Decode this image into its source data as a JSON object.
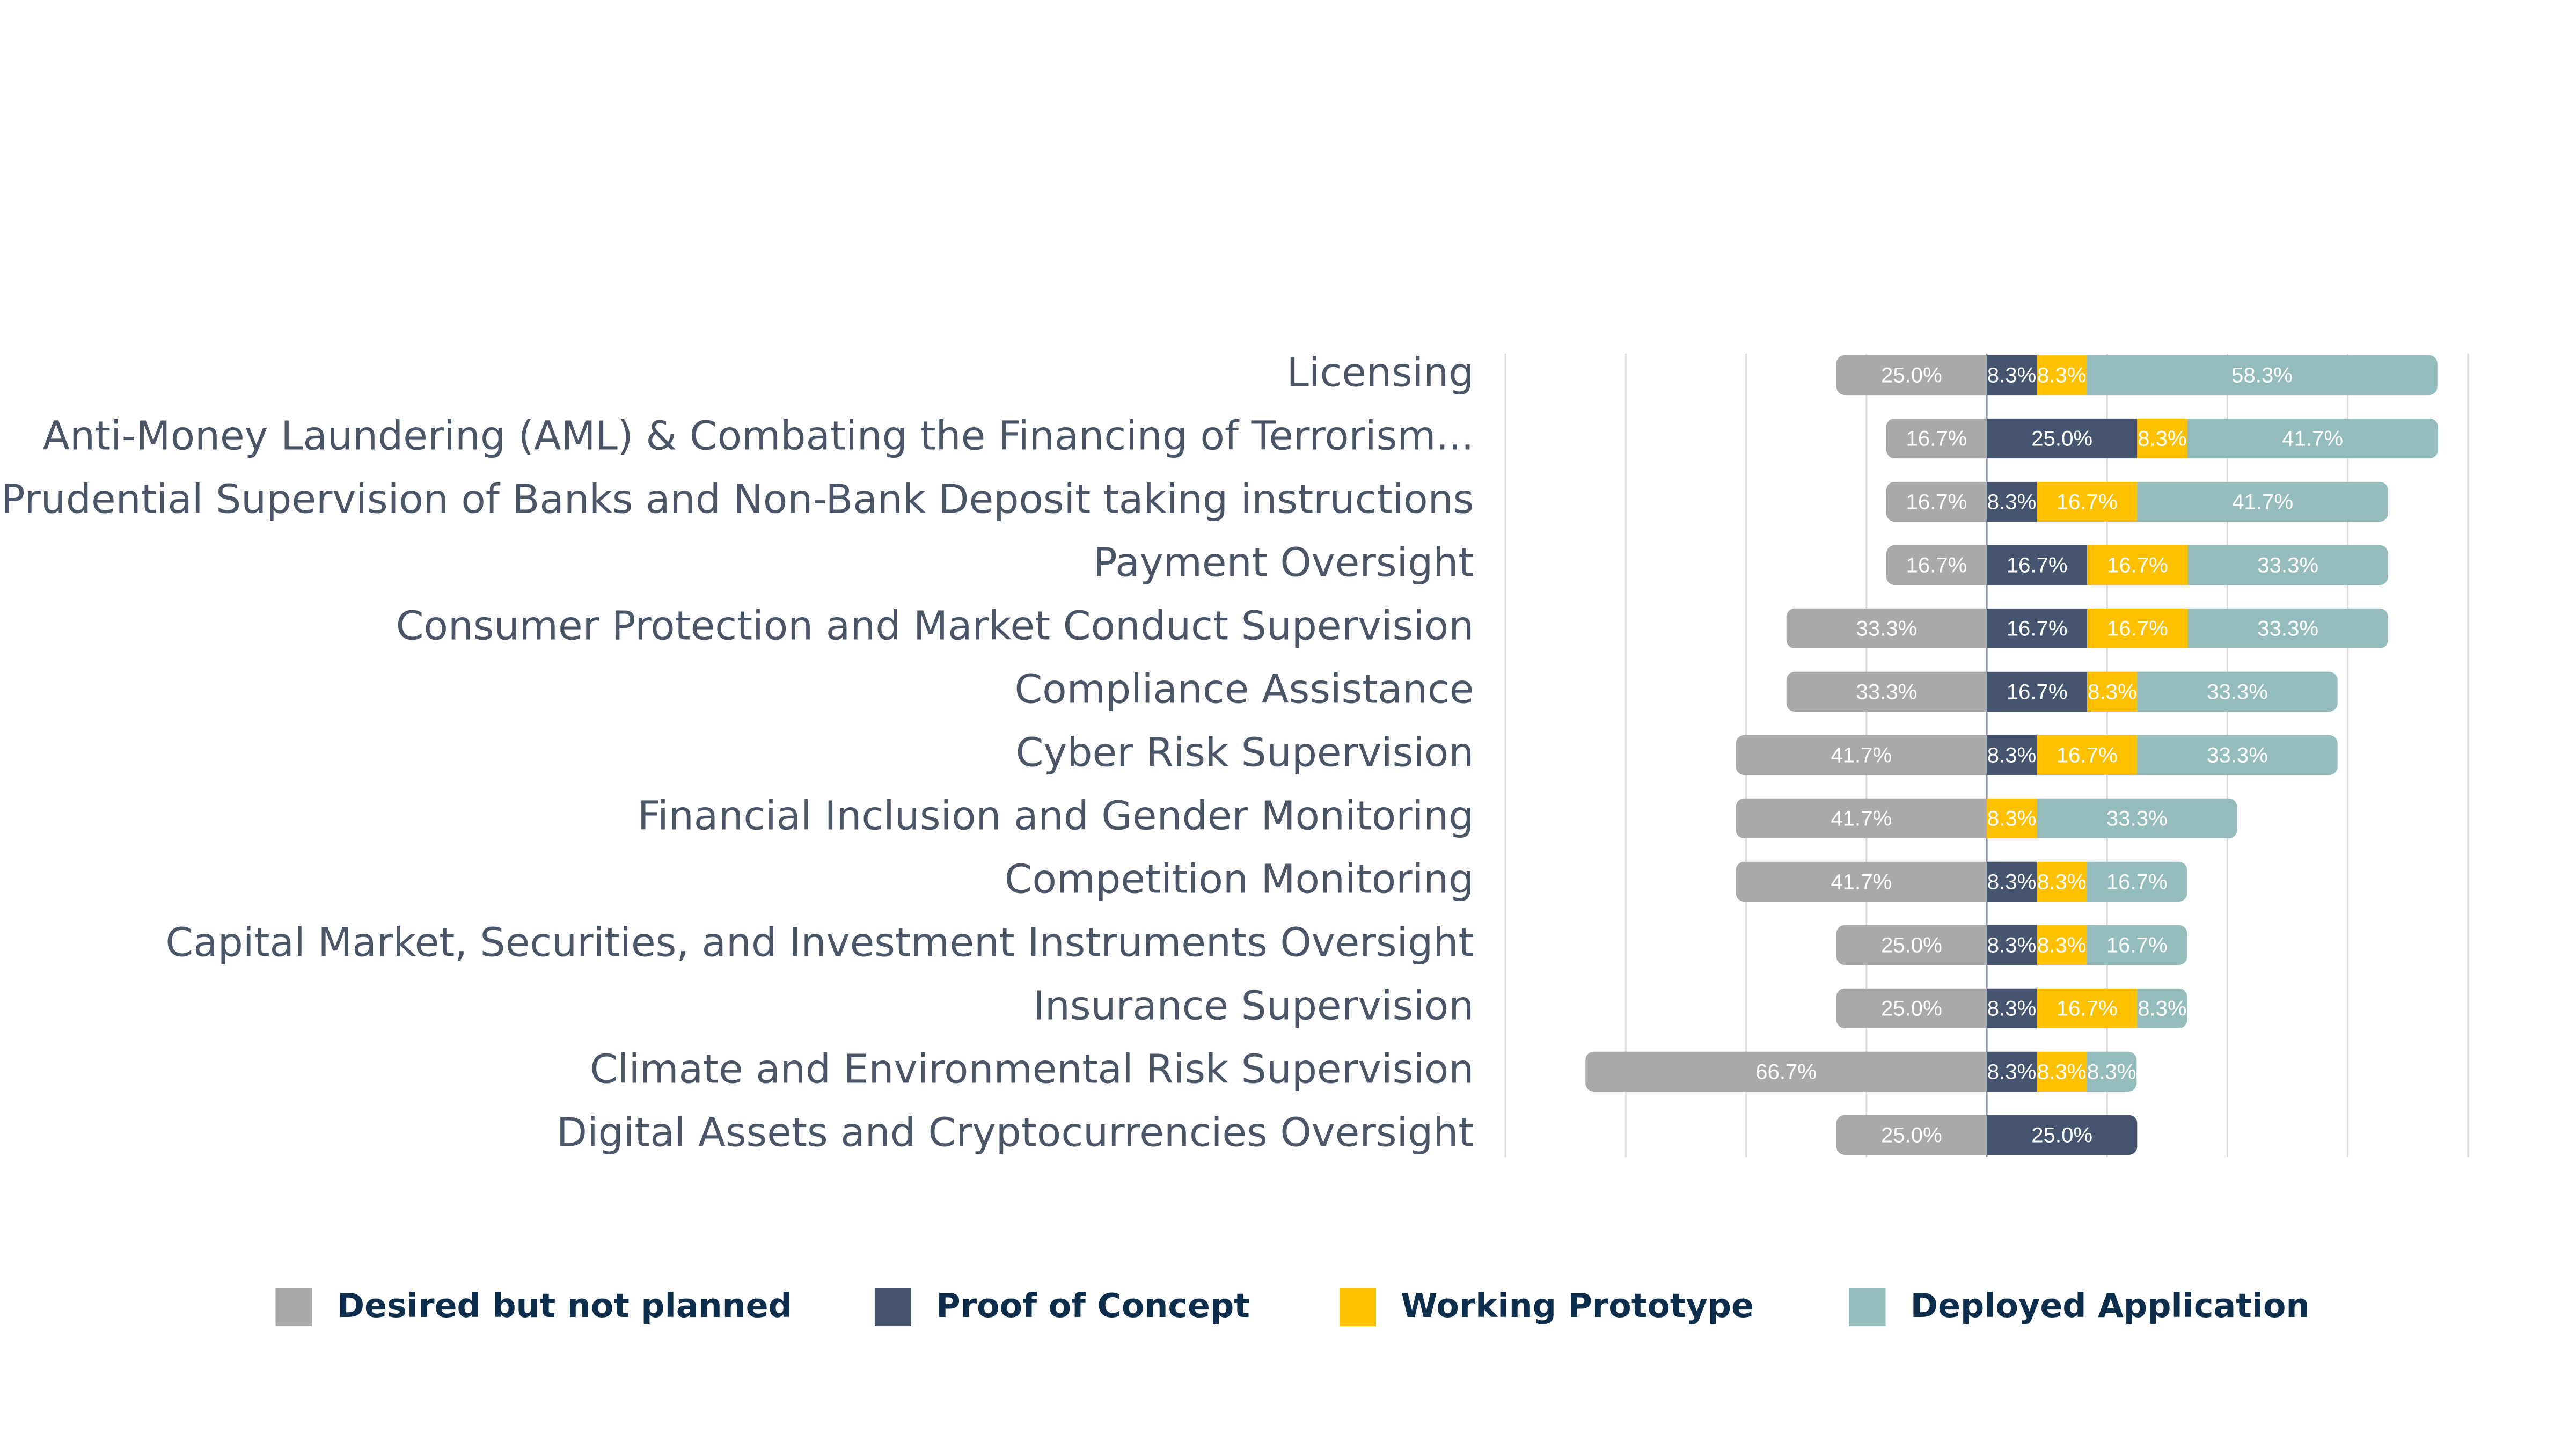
{
  "chart_data": {
    "type": "diverging_bar",
    "categories": [
      "Licensing",
      "Anti-Money Laundering (AML) & Combating the Financing of Terrorism...",
      "Prudential Supervision of Banks and Non-Bank Deposit taking instructions",
      "Payment Oversight",
      "Consumer Protection and Market Conduct Supervision",
      "Compliance Assistance",
      "Cyber Risk Supervision",
      "Financial Inclusion and Gender Monitoring",
      "Competition Monitoring",
      "Capital Market, Securities, and Investment Instruments Oversight",
      "Insurance Supervision",
      "Climate and Environmental Risk Supervision",
      "Digital Assets and Cryptocurrencies Oversight"
    ],
    "series": [
      {
        "name": "Desired but not planned",
        "color": "#a9a9a9",
        "direction": "left",
        "values": [
          25.0,
          16.7,
          16.7,
          16.7,
          33.3,
          33.3,
          41.7,
          41.7,
          41.7,
          25.0,
          25.0,
          66.7,
          25.0
        ],
        "value_labels": [
          "25.0%",
          "16.7%",
          "16.7%",
          "16.7%",
          "33.3%",
          "33.3%",
          "41.7%",
          "41.7%",
          "41.7%",
          "25.0%",
          "25.0%",
          "66.7%",
          "25.0%"
        ]
      },
      {
        "name": "Proof of Concept",
        "color": "#46556f",
        "direction": "right",
        "values": [
          8.3,
          25.0,
          8.3,
          16.7,
          16.7,
          16.7,
          8.3,
          null,
          8.3,
          8.3,
          8.3,
          8.3,
          25.0
        ],
        "value_labels": [
          "8.3%",
          "25.0%",
          "8.3%",
          "16.7%",
          "16.7%",
          "16.7%",
          "8.3%",
          null,
          "8.3%",
          "8.3%",
          "8.3%",
          "8.3%",
          "25.0%"
        ]
      },
      {
        "name": "Working Prototype",
        "color": "#ffc000",
        "direction": "right",
        "values": [
          8.3,
          8.3,
          16.7,
          16.7,
          16.7,
          8.3,
          16.7,
          8.3,
          8.3,
          8.3,
          16.7,
          8.3,
          null
        ],
        "value_labels": [
          "8.3%",
          "8.3%",
          "16.7%",
          "16.7%",
          "16.7%",
          "8.3%",
          "16.7%",
          "8.3%",
          "8.3%",
          "8.3%",
          "16.7%",
          "8.3%",
          null
        ]
      },
      {
        "name": "Deployed Application",
        "color": "#95bcbc",
        "direction": "right",
        "values": [
          58.3,
          41.7,
          41.7,
          33.3,
          33.3,
          33.3,
          33.3,
          33.3,
          16.7,
          16.7,
          8.3,
          8.3,
          null
        ],
        "value_labels": [
          "58.3%",
          "41.7%",
          "41.7%",
          "33.3%",
          "33.3%",
          "33.3%",
          "33.3%",
          "33.3%",
          "16.7%",
          "16.7%",
          "8.3%",
          "8.3%",
          null
        ]
      }
    ],
    "xlim": [
      -80,
      80
    ],
    "xticks": [
      -80,
      -60,
      -40,
      -20,
      0,
      20,
      40,
      60,
      80
    ],
    "grid": true,
    "legend": "bottom"
  }
}
